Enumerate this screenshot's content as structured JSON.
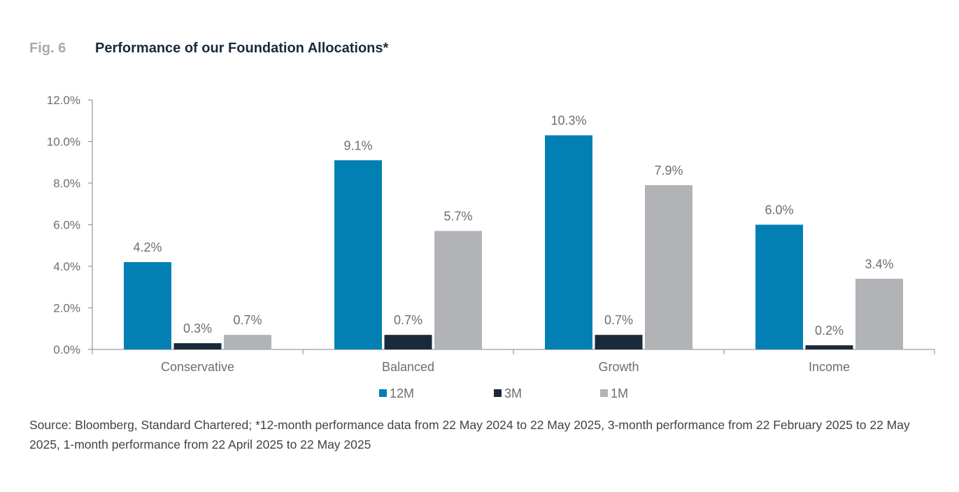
{
  "figure": {
    "number": "Fig. 6",
    "title": "Performance of our Foundation Allocations*"
  },
  "chart_data": {
    "type": "bar",
    "title": "Performance of our Foundation Allocations*",
    "categories": [
      "Conservative",
      "Balanced",
      "Growth",
      "Income"
    ],
    "series": [
      {
        "name": "12M",
        "color": "#0380b3",
        "values": [
          4.2,
          9.1,
          10.3,
          6.0
        ],
        "labels": [
          "4.2%",
          "9.1%",
          "10.3%",
          "6.0%"
        ]
      },
      {
        "name": "3M",
        "color": "#1b2a3a",
        "values": [
          0.3,
          0.7,
          0.7,
          0.2
        ],
        "labels": [
          "0.3%",
          "0.7%",
          "0.7%",
          "0.2%"
        ]
      },
      {
        "name": "1M",
        "color": "#b1b3b6",
        "values": [
          0.7,
          5.7,
          7.9,
          3.4
        ],
        "labels": [
          "0.7%",
          "5.7%",
          "7.9%",
          "3.4%"
        ]
      }
    ],
    "ylim": [
      0,
      12
    ],
    "yticks": [
      0,
      2,
      4,
      6,
      8,
      10,
      12
    ],
    "ytick_labels": [
      "0.0%",
      "2.0%",
      "4.0%",
      "6.0%",
      "8.0%",
      "10.0%",
      "12.0%"
    ],
    "xlabel": "",
    "ylabel": "",
    "grid": false,
    "legend_position": "bottom-center"
  },
  "source": "Source: Bloomberg, Standard Chartered; *12-month performance data from 22 May 2024 to 22 May 2025, 3-month performance from 22 February 2025 to 22 May 2025, 1-month performance from 22 April 2025 to 22 May 2025"
}
